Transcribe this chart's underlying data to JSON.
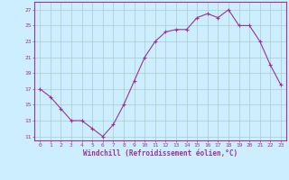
{
  "x": [
    0,
    1,
    2,
    3,
    4,
    5,
    6,
    7,
    8,
    9,
    10,
    11,
    12,
    13,
    14,
    15,
    16,
    17,
    18,
    19,
    20,
    21,
    22,
    23
  ],
  "y": [
    17,
    16,
    14.5,
    13,
    13,
    12,
    11,
    12.5,
    15,
    18,
    21,
    23,
    24.2,
    24.5,
    24.5,
    26,
    26.5,
    26,
    27,
    25,
    25,
    23,
    20,
    17.5
  ],
  "line_color": "#993399",
  "marker": "+",
  "bg_color": "#cceeff",
  "grid_color": "#aacccc",
  "xlabel": "Windchill (Refroidissement éolien,°C)",
  "ylabel_ticks": [
    11,
    13,
    15,
    17,
    19,
    21,
    23,
    25,
    27
  ],
  "xlim": [
    -0.5,
    23.5
  ],
  "ylim": [
    10.5,
    28.0
  ],
  "xticks": [
    0,
    1,
    2,
    3,
    4,
    5,
    6,
    7,
    8,
    9,
    10,
    11,
    12,
    13,
    14,
    15,
    16,
    17,
    18,
    19,
    20,
    21,
    22,
    23
  ],
  "axis_color": "#993399",
  "tick_color": "#993399",
  "font_color": "#993399"
}
